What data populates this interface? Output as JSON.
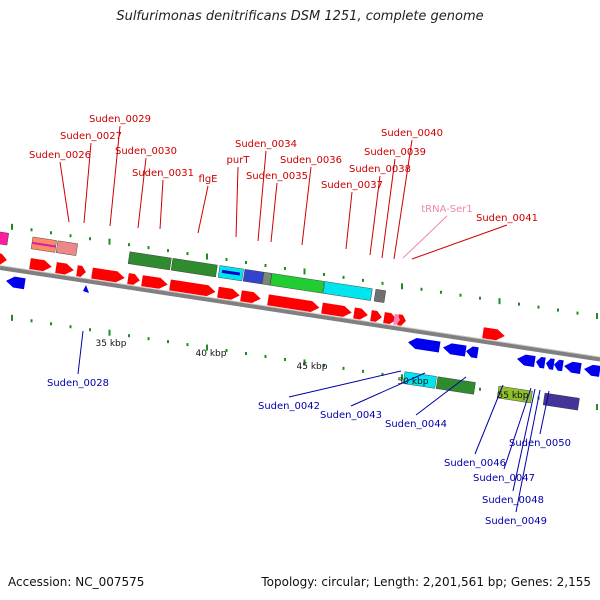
{
  "header": {
    "title": "Sulfurimonas denitrificans DSM 1251, complete genome"
  },
  "footer": {
    "accession": "Accession: NC_007575",
    "summary": "Topology: circular; Length: 2,201,561 bp; Genes: 2,155"
  },
  "colors": {
    "forward_label": "#cc0000",
    "reverse_label": "#0000aa",
    "trna_label": "#ee88aa",
    "forward_gene": "#ff0000",
    "reverse_gene": "#0000ee",
    "backbone": "#808080",
    "tick": "#1e8c1e",
    "dna_repair": "#2e8b2e",
    "signal": "#00e5ee",
    "cof": "#8fbf2a",
    "other": "#707070"
  },
  "scale_labels": [
    "35 kbp",
    "40 kbp",
    "45 kbp",
    "50 kbp",
    "55 kbp"
  ],
  "gene_labels": {
    "forward": [
      "Suden_0026",
      "Suden_0027",
      "Suden_0029",
      "Suden_0030",
      "Suden_0031",
      "flgE",
      "purT",
      "Suden_0034",
      "Suden_0035",
      "Suden_0036",
      "Suden_0037",
      "Suden_0038",
      "Suden_0039",
      "Suden_0040",
      "Suden_0041"
    ],
    "trna": [
      "tRNA-Ser1"
    ],
    "reverse": [
      "Suden_0028",
      "Suden_0042",
      "Suden_0043",
      "Suden_0044",
      "Suden_0046",
      "Suden_0047",
      "Suden_0048",
      "Suden_0049",
      "Suden_0050"
    ]
  }
}
